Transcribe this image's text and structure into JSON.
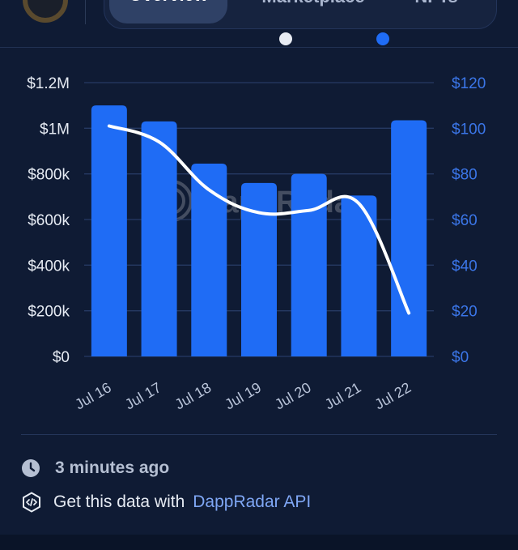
{
  "tabs": [
    {
      "label": "Overview",
      "active": true
    },
    {
      "label": "Marketplace",
      "active": false
    },
    {
      "label": "NFTs",
      "active": false
    }
  ],
  "legend": [
    "",
    ""
  ],
  "chart_data": {
    "type": "bar",
    "categories": [
      "Jul 16",
      "Jul 17",
      "Jul 18",
      "Jul 19",
      "Jul 20",
      "Jul 21",
      "Jul 22"
    ],
    "series": [
      {
        "type": "bar",
        "axis": "left",
        "color": "#1f6cf5",
        "values": [
          1100000,
          1030000,
          845000,
          760000,
          800000,
          705000,
          1035000
        ]
      },
      {
        "type": "line",
        "axis": "right",
        "color": "#ffffff",
        "values": [
          101,
          94,
          73,
          63,
          64,
          67,
          19
        ]
      }
    ],
    "y_left": {
      "min": 0,
      "max": 1200000,
      "ticks": [
        "$0",
        "$200k",
        "$400k",
        "$600k",
        "$800k",
        "$1M",
        "$1.2M"
      ]
    },
    "y_right": {
      "min": 0,
      "max": 120,
      "ticks": [
        "$0",
        "$20",
        "$40",
        "$60",
        "$80",
        "$100",
        "$120"
      ]
    },
    "grid": true,
    "watermark": "DappRadar",
    "colors": {
      "bar": "#1f6cf5",
      "line": "#ffffff",
      "left_axis_text": "#e6ebf3",
      "right_axis_text": "#3b76e8",
      "grid": "#263a63"
    }
  },
  "footer": {
    "updated": "3 minutes ago",
    "api_prefix": "Get this data with",
    "api_link": "DappRadar API"
  },
  "icons": {
    "clock": "clock-icon",
    "code": "code-icon"
  }
}
